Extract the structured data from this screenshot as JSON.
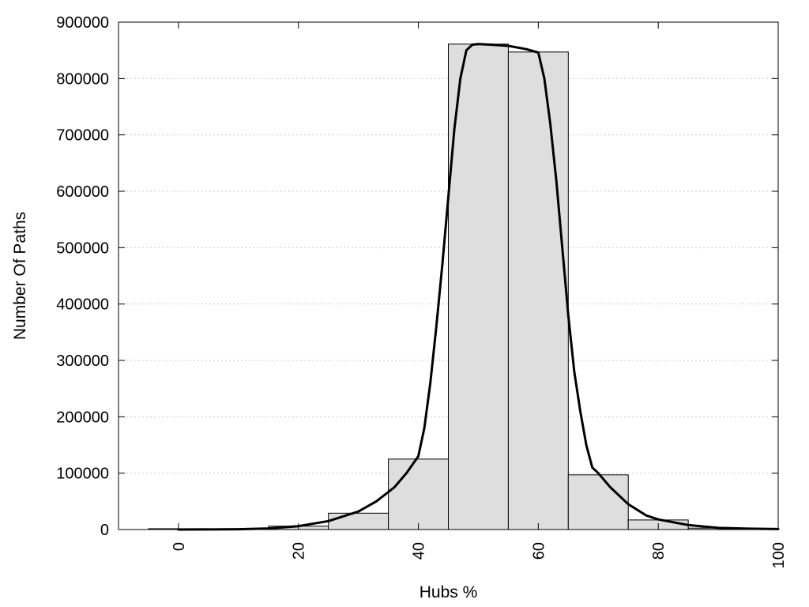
{
  "chart_data": {
    "type": "bar",
    "title": "",
    "xlabel": "Hubs %",
    "ylabel": "Number Of Paths",
    "xlim": [
      -10,
      100
    ],
    "ylim": [
      0,
      900000
    ],
    "x_ticks": [
      0,
      20,
      40,
      60,
      80,
      100
    ],
    "y_ticks": [
      0,
      100000,
      200000,
      300000,
      400000,
      500000,
      600000,
      700000,
      800000,
      900000
    ],
    "grid": "horizontal dotted",
    "legend": "none",
    "bin_width": 10,
    "categories": [
      0,
      10,
      20,
      30,
      40,
      50,
      60,
      70,
      80,
      90
    ],
    "values": [
      1500,
      1000,
      6000,
      29000,
      125000,
      861000,
      847000,
      97000,
      17000,
      2500
    ],
    "curve": {
      "x": [
        0,
        5,
        10,
        15,
        20,
        25,
        30,
        33,
        36,
        38,
        40,
        41,
        42,
        43,
        44,
        45,
        46,
        47,
        48,
        49,
        50,
        52,
        55,
        58,
        60,
        61,
        62,
        63,
        64,
        65,
        66,
        67,
        68,
        69,
        70,
        72,
        75,
        78,
        80,
        85,
        90,
        95,
        100
      ],
      "y": [
        0,
        200,
        500,
        2000,
        6000,
        15000,
        32000,
        50000,
        75000,
        100000,
        130000,
        180000,
        260000,
        360000,
        470000,
        590000,
        710000,
        800000,
        850000,
        860000,
        861000,
        860000,
        858000,
        852000,
        846000,
        800000,
        720000,
        620000,
        500000,
        380000,
        280000,
        210000,
        150000,
        110000,
        100000,
        75000,
        45000,
        25000,
        18000,
        8000,
        3000,
        1500,
        800
      ]
    },
    "colors": {
      "bar_fill": "#dedede",
      "bar_stroke": "#000000",
      "curve": "#000000",
      "grid": "#c8c8c8"
    }
  }
}
